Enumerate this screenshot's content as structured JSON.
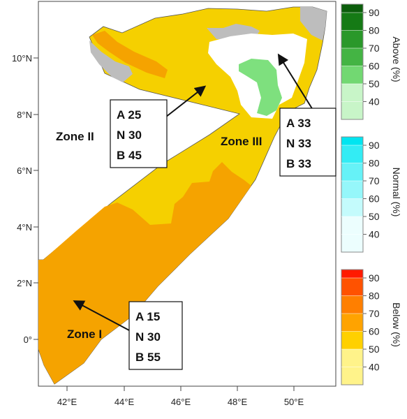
{
  "map": {
    "axes": {
      "x_ticks": [
        "42°E",
        "44°E",
        "46°E",
        "48°E",
        "50°E"
      ],
      "y_ticks": [
        "10°N",
        "8°N",
        "6°N",
        "4°N",
        "2°N",
        "0°"
      ]
    },
    "zones": [
      {
        "label": "Zone I",
        "A": "A 15",
        "N": "N 30",
        "B": "B 55"
      },
      {
        "label": "Zone II",
        "A": "A 25",
        "N": "N 30",
        "B": "B 45"
      },
      {
        "label": "Zone III",
        "A": "A 33",
        "N": "N 33",
        "B": "B 33"
      }
    ],
    "colors": {
      "dominant_below_50": "#f5d000",
      "dominant_below_55": "#f5a300",
      "equal_chances_grey": "#bdbdbd",
      "above_50": "#7ee07e",
      "white": "#ffffff"
    }
  },
  "legend": {
    "above": {
      "title": "Above (%)",
      "ticks": [
        "90",
        "80",
        "70",
        "60",
        "50",
        "40"
      ],
      "colors": [
        "#0b5d0b",
        "#157a15",
        "#2a982a",
        "#44b444",
        "#72d872",
        "#c8f5c8"
      ]
    },
    "normal": {
      "title": "Normal (%)",
      "ticks": [
        "90",
        "80",
        "70",
        "60",
        "50",
        "40"
      ],
      "colors": [
        "#00e5f0",
        "#33ecf4",
        "#66f2f7",
        "#95f7fa",
        "#c4fbfc",
        "#ecfefe"
      ]
    },
    "below": {
      "title": "Below (%)",
      "ticks": [
        "90",
        "80",
        "70",
        "60",
        "50",
        "40"
      ],
      "colors": [
        "#ff1a00",
        "#ff5200",
        "#ff7f00",
        "#ffa300",
        "#ffd000",
        "#fff38a"
      ]
    }
  }
}
